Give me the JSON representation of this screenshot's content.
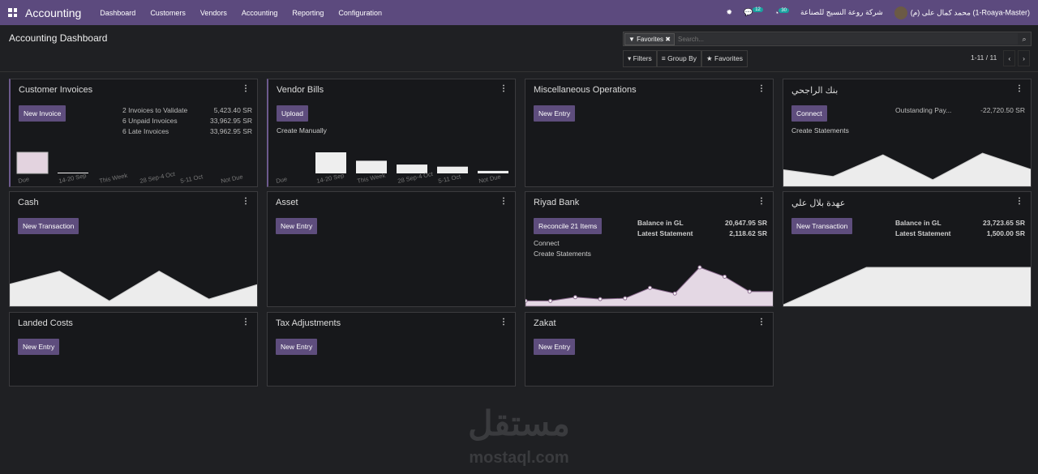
{
  "nav": {
    "brand": "Accounting",
    "menu": [
      "Dashboard",
      "Customers",
      "Vendors",
      "Accounting",
      "Reporting",
      "Configuration"
    ],
    "messages_count": "12",
    "activities_count": "30",
    "company": "شركة روعة النسيج للصناعة",
    "user": "محمد كمال على (م) (1-Roaya-Master)"
  },
  "page": {
    "title": "Accounting Dashboard"
  },
  "search": {
    "facet": "Favorites",
    "placeholder": "Search..."
  },
  "filters": {
    "filters": "Filters",
    "group_by": "Group By",
    "favorites": "Favorites"
  },
  "pager": {
    "value": "1-11 / 11"
  },
  "colors": {
    "navbar": "#5c4a7e",
    "button": "#5e4d7d",
    "graph_fill": "#e8e2ea"
  },
  "cards": [
    {
      "title": "Customer Invoices",
      "button": "New Invoice",
      "highlight": true,
      "stats": [
        [
          "2 Invoices to Validate",
          "5,423.40 SR"
        ],
        [
          "6 Unpaid Invoices",
          "33,962.95 SR"
        ],
        [
          "6 Late Invoices",
          "33,962.95 SR"
        ]
      ],
      "bars": {
        "labels": [
          "Due",
          "14-20 Sep",
          "This Week",
          "28 Sep-4 Oct",
          "5-11 Oct",
          "Not Due"
        ],
        "values": [
          1,
          0.03,
          0,
          0,
          0,
          0
        ],
        "first_color": "#e3d3df"
      }
    },
    {
      "title": "Vendor Bills",
      "button": "Upload",
      "links": [
        "Create Manually"
      ],
      "highlight": true,
      "bars": {
        "labels": [
          "Due",
          "14-20 Sep",
          "This Week",
          "28 Sep-4 Oct",
          "5-11 Oct",
          "Not Due"
        ],
        "values": [
          0,
          1,
          0.6,
          0.42,
          0.32,
          0.12
        ]
      }
    },
    {
      "title": "Miscellaneous Operations",
      "button": "New Entry"
    },
    {
      "title": "بنك الراجحي",
      "button": "Connect",
      "links": [
        "Create Statements"
      ],
      "stats": [
        [
          "Outstanding Pay...",
          "-22,720.50 SR"
        ]
      ],
      "line": [
        0.45,
        0.25,
        0.9,
        0.15,
        0.95,
        0.45
      ]
    },
    {
      "title": "Cash",
      "button": "New Transaction",
      "line": [
        0.55,
        0.9,
        0.1,
        0.9,
        0.15,
        0.55
      ]
    },
    {
      "title": "Asset",
      "button": "New Entry"
    },
    {
      "title": "Riyad Bank",
      "button": "Reconcile 21 Items",
      "links": [
        "Connect",
        "Create Statements"
      ],
      "stats": [
        [
          "Balance in GL",
          "20,647.95 SR"
        ],
        [
          "Latest Statement",
          "2,118.62 SR"
        ]
      ],
      "line": [
        0.1,
        0.1,
        0.2,
        0.15,
        0.17,
        0.45,
        0.3,
        1,
        0.75,
        0.35,
        0.35
      ],
      "dots": true
    },
    {
      "title": "عهدة بلال علي",
      "button": "New Transaction",
      "stats": [
        [
          "Balance in GL",
          "23,723.65 SR"
        ],
        [
          "Latest Statement",
          "1,500.00 SR"
        ]
      ],
      "line": [
        0,
        1,
        1,
        1
      ]
    },
    {
      "title": "Landed Costs",
      "button": "New Entry"
    },
    {
      "title": "Tax Adjustments",
      "button": "New Entry"
    },
    {
      "title": "Zakat",
      "button": "New Entry"
    }
  ],
  "watermark": {
    "arabic": "مستقل",
    "latin": "mostaql.com"
  }
}
